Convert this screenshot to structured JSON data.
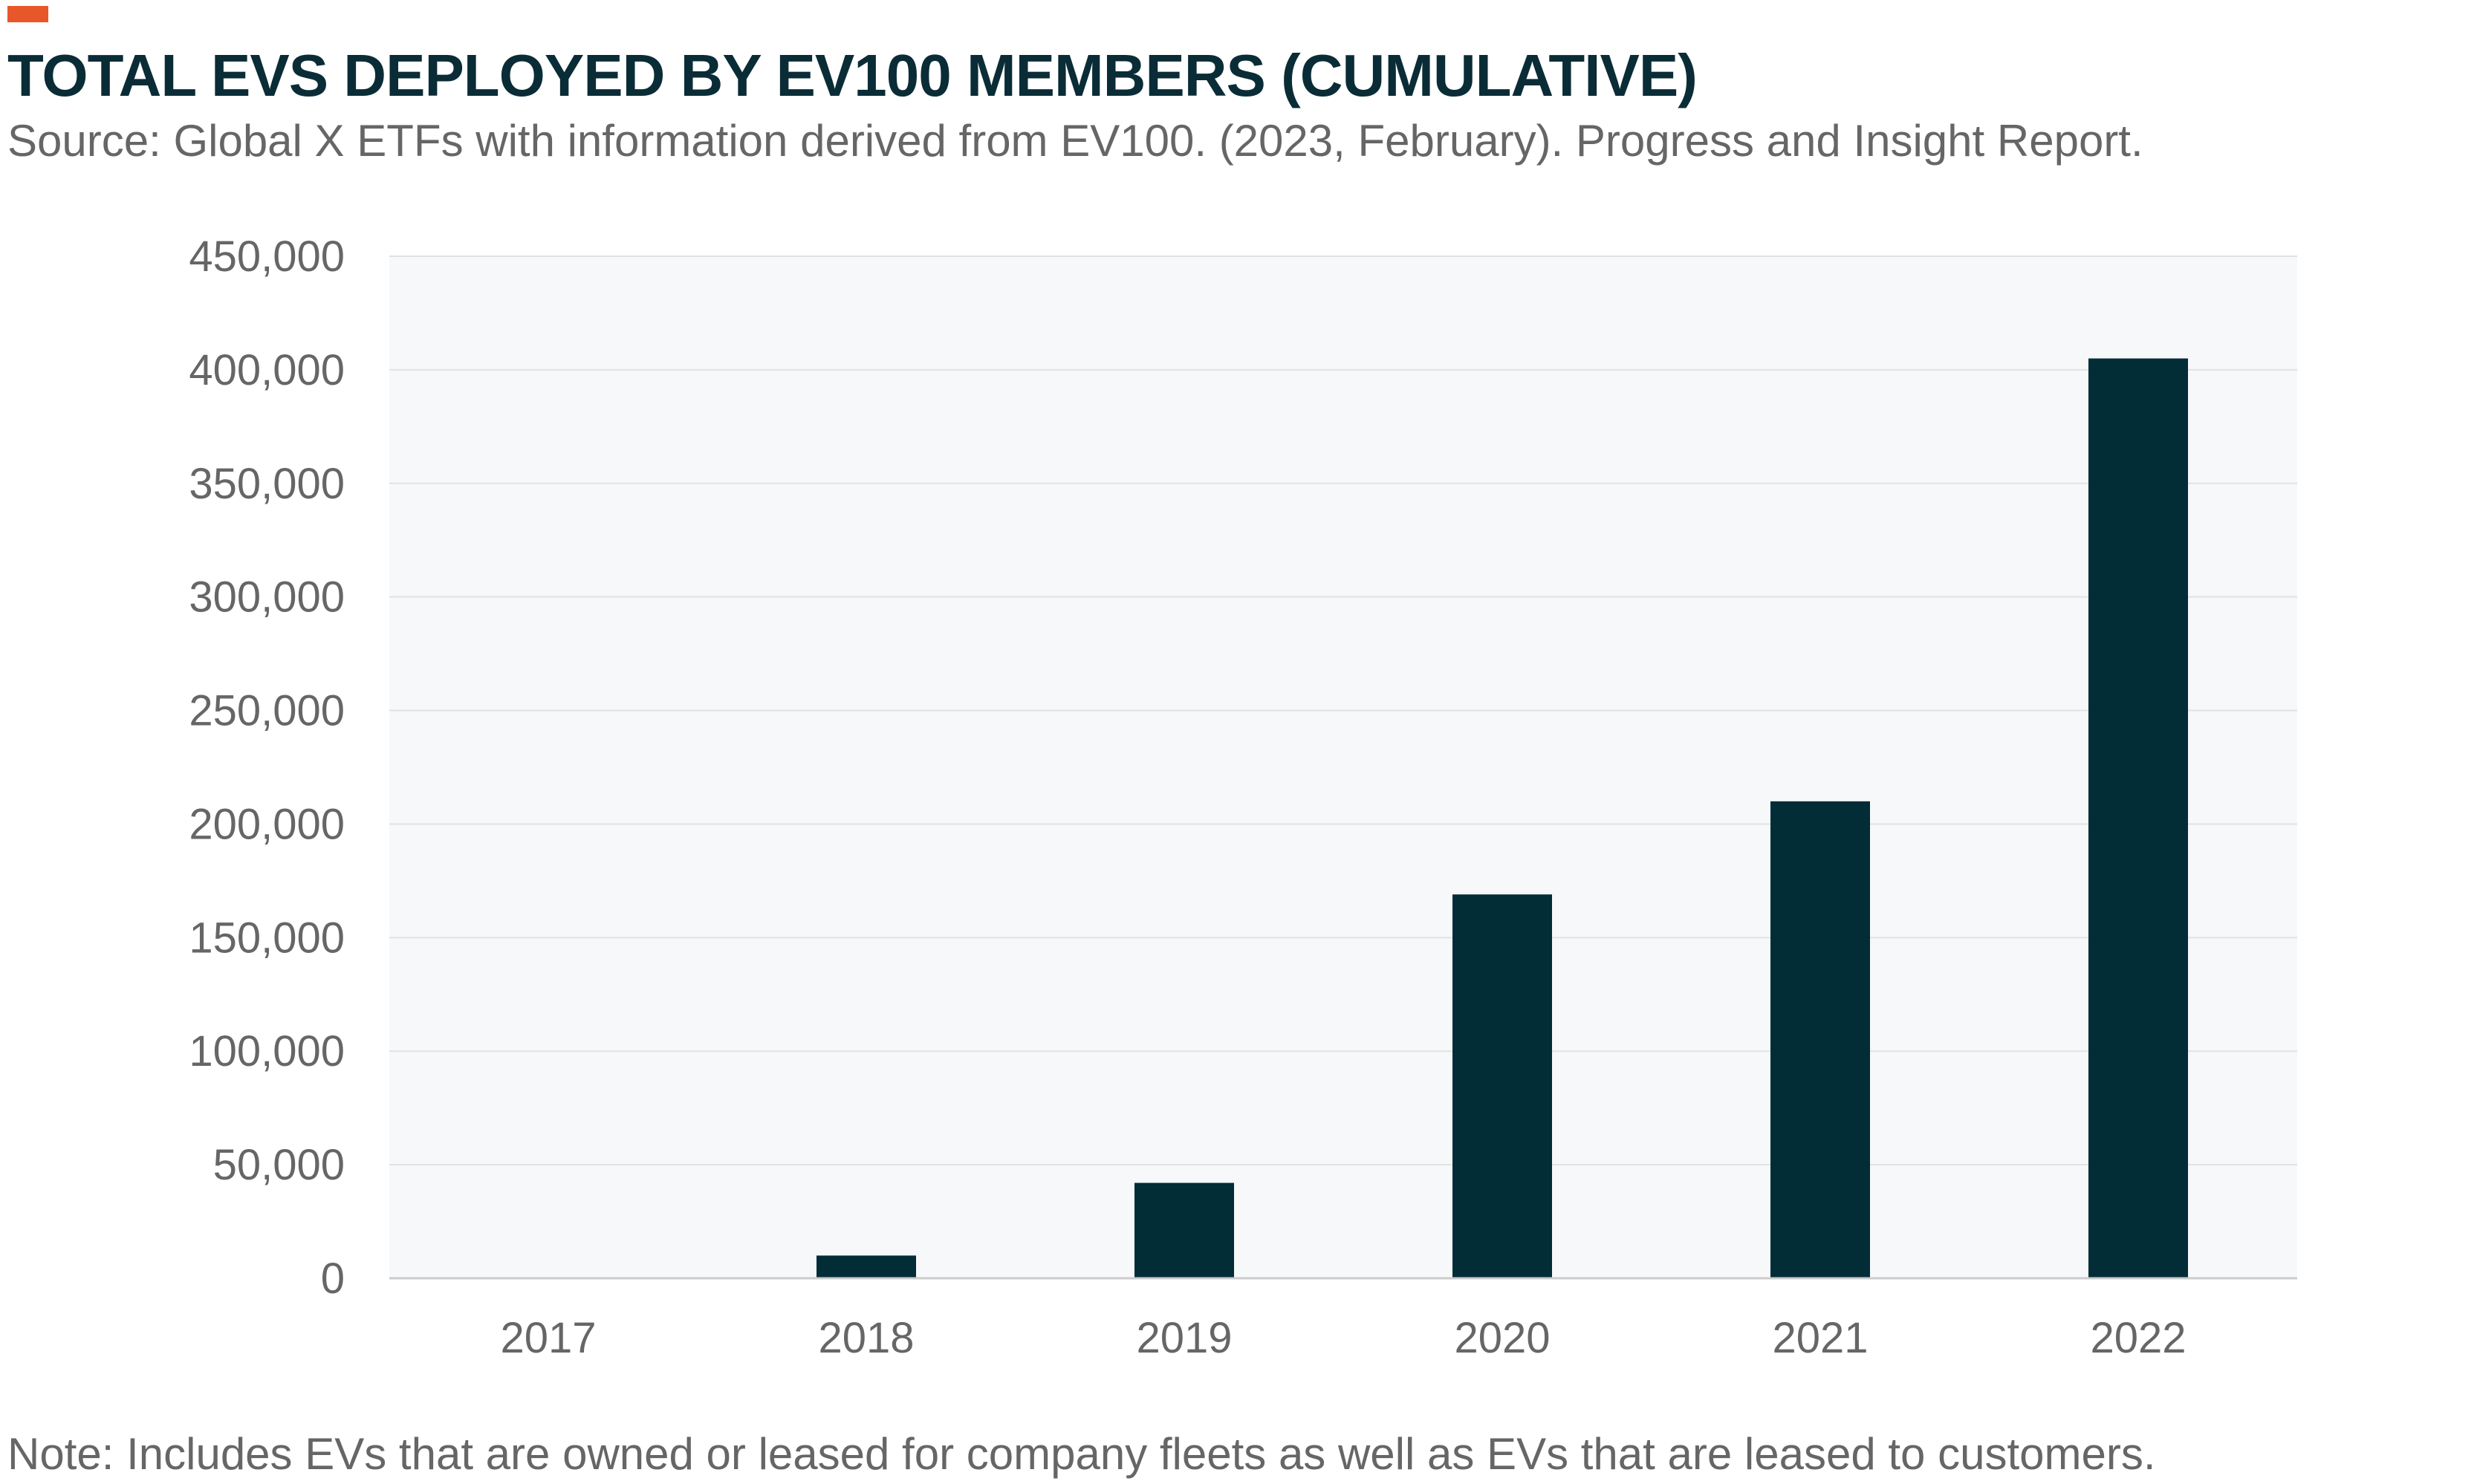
{
  "colors": {
    "accent": "#E8572A",
    "title": "#0A2C36",
    "text": "#666666",
    "bar": "#022D36",
    "plot_background": "#F7F8FA",
    "gridline": "#E2E2E2",
    "axis": "#CCCCCC"
  },
  "header": {
    "title": "TOTAL EVS DEPLOYED BY EV100 MEMBERS (CUMULATIVE)",
    "subtitle": "Source: Global X ETFs with information derived from EV100. (2023, February). Progress and Insight Report."
  },
  "footer": {
    "note": "Note: Includes EVs that are owned or leased for company fleets as well as EVs that are leased to customers."
  },
  "chart_data": {
    "type": "bar",
    "title": "TOTAL EVS DEPLOYED BY EV100 MEMBERS (CUMULATIVE)",
    "xlabel": "",
    "ylabel": "",
    "categories": [
      "2017",
      "2018",
      "2019",
      "2020",
      "2021",
      "2022"
    ],
    "values": [
      0,
      10000,
      42000,
      169000,
      210000,
      405000
    ],
    "ylim": [
      0,
      450000
    ],
    "yticks": [
      0,
      50000,
      100000,
      150000,
      200000,
      250000,
      300000,
      350000,
      400000,
      450000
    ],
    "ytick_labels": [
      "0",
      "50,000",
      "100,000",
      "150,000",
      "200,000",
      "250,000",
      "300,000",
      "350,000",
      "400,000",
      "450,000"
    ],
    "grid": true,
    "legend": "none"
  }
}
